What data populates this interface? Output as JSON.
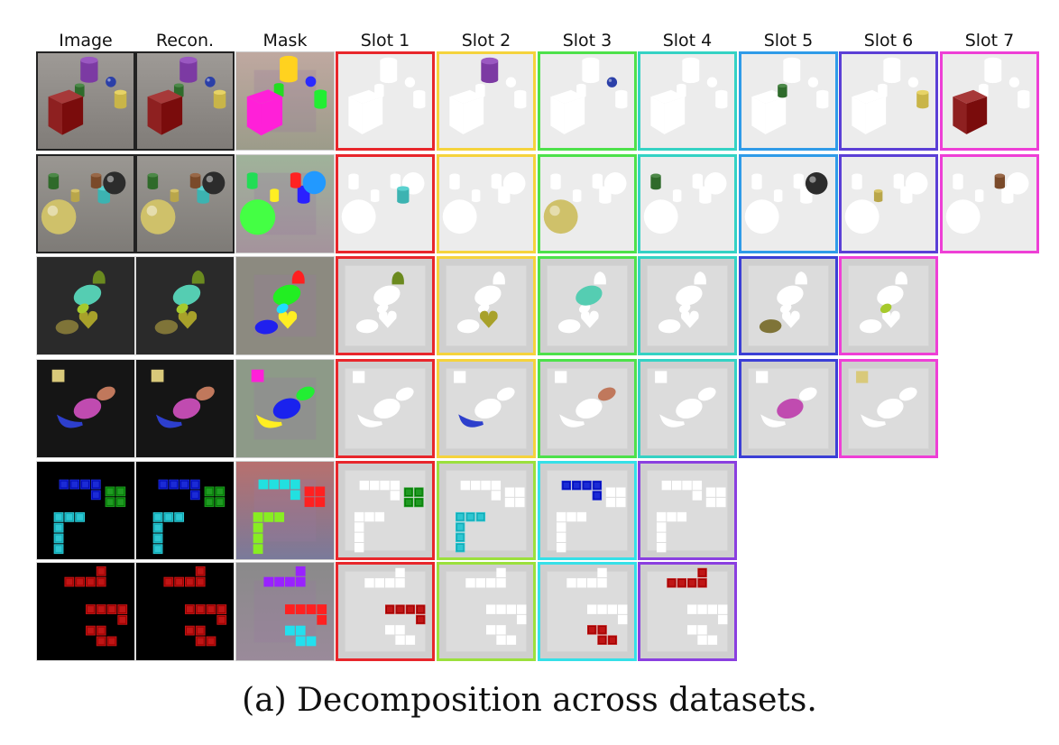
{
  "figure": {
    "columns": [
      "Image",
      "Recon.",
      "Mask",
      "Slot 1",
      "Slot 2",
      "Slot 3",
      "Slot 4",
      "Slot 5",
      "Slot 6",
      "Slot 7"
    ],
    "caption": "(a) Decomposition across datasets.",
    "rows": [
      {
        "scene": "clevr1",
        "slot_frames": [
          "#e8262b",
          "#f5d33c",
          "#4de14a",
          "#34d2c4",
          "#2f9be8",
          "#5b3fd6",
          "#ee3fd6"
        ],
        "slot_objects": [
          "none",
          "purple-cylinder",
          "blue-sphere",
          "none",
          "green-cylinder",
          "yellow-cylinder",
          "red-cube"
        ]
      },
      {
        "scene": "clevr2",
        "slot_frames": [
          "#e8262b",
          "#f5d33c",
          "#4de14a",
          "#34d2c4",
          "#2f9be8",
          "#5b3fd6",
          "#ee3fd6"
        ],
        "slot_objects": [
          "cyan-cylinder",
          "none",
          "yellow-sphere",
          "green-cylinder",
          "metal-sphere",
          "yellow-cylinder",
          "brown-cylinder"
        ]
      },
      {
        "scene": "shapes1",
        "slot_frames": [
          "#e8262b",
          "#f5d33c",
          "#4de14a",
          "#34d2c4",
          "#3b3fd6",
          "#ee3fd6"
        ],
        "slot_objects": [
          "green-blob",
          "olive-heart",
          "teal-ellipse",
          "none",
          "olive-ellipse",
          "lime-drop"
        ]
      },
      {
        "scene": "shapes2",
        "slot_frames": [
          "#e8262b",
          "#f5d33c",
          "#4de14a",
          "#34d2c4",
          "#3b3fd6",
          "#ee3fd6"
        ],
        "slot_objects": [
          "none",
          "blue-crescent",
          "orange-ellipse",
          "none",
          "magenta-ellipse",
          "yellow-square"
        ]
      },
      {
        "scene": "tetris1",
        "slot_frames": [
          "#e8262b",
          "#9be03c",
          "#35e0e8",
          "#8a3fe0"
        ],
        "slot_objects": [
          "green-square",
          "cyan-l",
          "blue-l",
          "none"
        ]
      },
      {
        "scene": "tetris2",
        "slot_frames": [
          "#e8262b",
          "#9be03c",
          "#35e0e8",
          "#8a3fe0"
        ],
        "slot_objects": [
          "red-z",
          "none",
          "red-s",
          "red-l"
        ]
      }
    ]
  }
}
